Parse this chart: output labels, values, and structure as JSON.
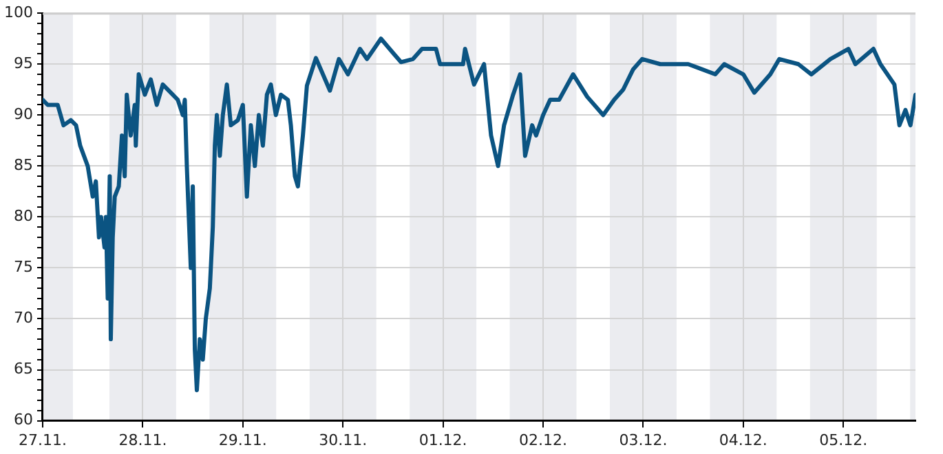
{
  "chart_data": {
    "type": "line",
    "x": [
      "--11-27T00:00",
      "--11-27T01:12",
      "--11-27T03:36",
      "--11-27T05:00",
      "--11-27T06:45",
      "--11-27T08:00",
      "--11-27T09:00",
      "--11-27T10:48",
      "--11-27T12:00",
      "--11-27T12:45",
      "--11-27T13:30",
      "--11-27T14:00",
      "--11-27T14:50",
      "--11-27T15:10",
      "--11-27T15:36",
      "--11-27T16:05",
      "--11-27T16:20",
      "--11-27T16:48",
      "--11-27T17:17",
      "--11-27T18:15",
      "--11-27T19:00",
      "--11-27T19:40",
      "--11-27T20:10",
      "--11-27T21:07",
      "--11-27T22:05",
      "--11-27T22:20",
      "--11-27T23:02",
      "--11-28T00:30",
      "--11-28T01:55",
      "--11-28T03:22",
      "--11-28T04:48",
      "--11-28T07:12",
      "--11-28T08:24",
      "--11-28T09:36",
      "--11-28T10:05",
      "--11-28T10:34",
      "--11-28T11:31",
      "--11-28T12:00",
      "--11-28T12:29",
      "--11-28T12:58",
      "--11-28T13:41",
      "--11-28T14:24",
      "--11-28T15:07",
      "--11-28T16:05",
      "--11-28T16:48",
      "--11-28T17:17",
      "--11-28T17:46",
      "--11-28T18:29",
      "--11-28T19:12",
      "--11-28T20:10",
      "--11-28T21:07",
      "--11-28T22:48",
      "--11-29T00:00",
      "--11-29T00:58",
      "--11-29T01:55",
      "--11-29T02:53",
      "--11-29T03:50",
      "--11-29T04:48",
      "--11-29T05:46",
      "--11-29T06:43",
      "--11-29T07:55",
      "--11-29T09:07",
      "--11-29T10:48",
      "--11-29T11:31",
      "--11-29T12:29",
      "--11-29T13:12",
      "--11-29T13:55",
      "--11-29T14:24",
      "--11-29T15:22",
      "--11-29T17:31",
      "--11-29T20:53",
      "--11-29T23:02",
      "--11-30T01:12",
      "--11-30T04:05",
      "--11-30T05:46",
      "--11-30T09:07",
      "--11-30T12:14",
      "--11-30T13:55",
      "--11-30T16:48",
      "--11-30T18:58",
      "--11-30T22:19",
      "--11-30T23:17",
      "--12-01T04:48",
      "--12-01T05:17",
      "--12-01T07:26",
      "--12-01T09:50",
      "--12-01T11:31",
      "--12-01T13:12",
      "--12-01T14:38",
      "--12-01T16:48",
      "--12-01T18:29",
      "--12-01T19:41",
      "--12-01T21:22",
      "--12-01T22:19",
      "--12-02T00:00",
      "--12-02T01:41",
      "--12-02T03:50",
      "--12-02T07:12",
      "--12-02T10:34",
      "--12-02T14:24",
      "--12-02T17:02",
      "--12-02T19:12",
      "--12-02T21:36",
      "--12-02T23:46",
      "--12-03T04:05",
      "--12-03T10:48",
      "--12-03T17:17",
      "--12-03T19:26",
      "--12-04T00:00",
      "--12-04T02:38",
      "--12-04T06:29",
      "--12-04T08:38",
      "--12-04T13:12",
      "--12-04T16:19",
      "--12-04T20:53",
      "--12-05T01:12",
      "--12-05T02:53",
      "--12-05T07:12",
      "--12-05T08:53",
      "--12-05T12:14",
      "--12-05T13:26",
      "--12-05T14:53",
      "--12-05T16:05",
      "--12-05T17:17"
    ],
    "values": [
      91.5,
      91,
      91,
      89,
      89.5,
      89,
      87,
      85,
      82,
      83.5,
      78,
      80,
      77,
      80,
      72,
      84,
      68,
      78,
      82,
      83,
      88,
      84,
      92,
      88,
      91,
      87,
      94,
      92,
      93.5,
      91,
      93,
      92,
      91.5,
      90,
      91.5,
      85,
      75,
      83,
      67,
      63,
      68,
      66,
      70,
      73,
      79,
      87,
      90,
      86,
      90,
      93,
      89,
      89.5,
      91,
      82,
      89,
      85,
      90,
      87,
      92,
      93,
      90,
      92,
      91.5,
      89,
      84,
      83,
      86,
      88,
      92.9,
      95.6,
      92.4,
      95.5,
      94,
      96.5,
      95.5,
      97.5,
      96,
      95.2,
      95.5,
      96.5,
      96.5,
      95,
      95,
      96.5,
      93,
      95,
      88,
      85,
      89,
      92,
      94,
      86,
      89,
      88,
      90,
      91.5,
      91.5,
      94,
      91.8,
      90,
      91.5,
      92.5,
      94.5,
      95.5,
      95,
      95,
      94,
      95,
      94,
      92.2,
      94,
      95.5,
      95,
      94,
      95.5,
      96.5,
      95,
      96.5,
      95,
      93,
      89,
      90.5,
      89,
      92
    ],
    "color": "#0b5482",
    "marker": "none",
    "line_style": "solid",
    "grid": true,
    "legend": false,
    "xlim": [
      "--11-27T00:00",
      "--12-05T17:17"
    ],
    "xticks": [
      {
        "value": "--11-27",
        "label": "27.11."
      },
      {
        "value": "--11-28",
        "label": "28.11."
      },
      {
        "value": "--11-29",
        "label": "29.11."
      },
      {
        "value": "--11-30",
        "label": "30.11."
      },
      {
        "value": "--12-01",
        "label": "01.12."
      },
      {
        "value": "--12-02",
        "label": "02.12."
      },
      {
        "value": "--12-03",
        "label": "03.12."
      },
      {
        "value": "--12-04",
        "label": "04.12."
      },
      {
        "value": "--12-05",
        "label": "05.12."
      }
    ],
    "ylim": [
      60,
      100
    ],
    "yticks": [
      60,
      {
        "value": 61,
        "label": null
      },
      {
        "value": 62,
        "label": null
      },
      {
        "value": 63,
        "label": null
      },
      {
        "value": 64,
        "label": null
      },
      65,
      {
        "value": 66,
        "label": null
      },
      {
        "value": 67,
        "label": null
      },
      {
        "value": 68,
        "label": null
      },
      {
        "value": 69,
        "label": null
      },
      70,
      {
        "value": 71,
        "label": null
      },
      {
        "value": 72,
        "label": null
      },
      {
        "value": 73,
        "label": null
      },
      {
        "value": 74,
        "label": null
      },
      75,
      {
        "value": 76,
        "label": null
      },
      {
        "value": 77,
        "label": null
      },
      {
        "value": 78,
        "label": null
      },
      {
        "value": 79,
        "label": null
      },
      80,
      {
        "value": 81,
        "label": null
      },
      {
        "value": 82,
        "label": null
      },
      {
        "value": 83,
        "label": null
      },
      {
        "value": 84,
        "label": null
      },
      85,
      {
        "value": 86,
        "label": null
      },
      {
        "value": 87,
        "label": null
      },
      {
        "value": 88,
        "label": null
      },
      {
        "value": 89,
        "label": null
      },
      90,
      {
        "value": 91,
        "label": null
      },
      {
        "value": 92,
        "label": null
      },
      {
        "value": 93,
        "label": null
      },
      {
        "value": 94,
        "label": null
      },
      95,
      {
        "value": 96,
        "label": null
      },
      {
        "value": 97,
        "label": null
      },
      {
        "value": 98,
        "label": null
      },
      {
        "value": 99,
        "label": null
      },
      100
    ],
    "bands": [
      {
        "axis": "x",
        "from": "--11-27T00:00",
        "to": "--11-27T07:15",
        "color": "#ebecf0"
      },
      {
        "axis": "x",
        "from": "--11-27T16:00",
        "to": "--11-28T08:00",
        "color": "#ebecf0"
      },
      {
        "axis": "x",
        "from": "--11-28T16:00",
        "to": "--11-29T08:00",
        "color": "#ebecf0"
      },
      {
        "axis": "x",
        "from": "--11-29T16:00",
        "to": "--11-30T08:00",
        "color": "#ebecf0"
      },
      {
        "axis": "x",
        "from": "--11-30T16:00",
        "to": "--12-01T08:00",
        "color": "#ebecf0"
      },
      {
        "axis": "x",
        "from": "--12-01T16:00",
        "to": "--12-02T08:00",
        "color": "#ebecf0"
      },
      {
        "axis": "x",
        "from": "--12-02T16:00",
        "to": "--12-03T08:00",
        "color": "#ebecf0"
      },
      {
        "axis": "x",
        "from": "--12-03T16:00",
        "to": "--12-04T08:00",
        "color": "#ebecf0"
      },
      {
        "axis": "x",
        "from": "--12-04T16:00",
        "to": "--12-05T08:00",
        "color": "#ebecf0"
      },
      {
        "axis": "x",
        "from": "--12-05T16:00",
        "to": "--12-05T17:17",
        "color": "#ebecf0"
      }
    ]
  }
}
